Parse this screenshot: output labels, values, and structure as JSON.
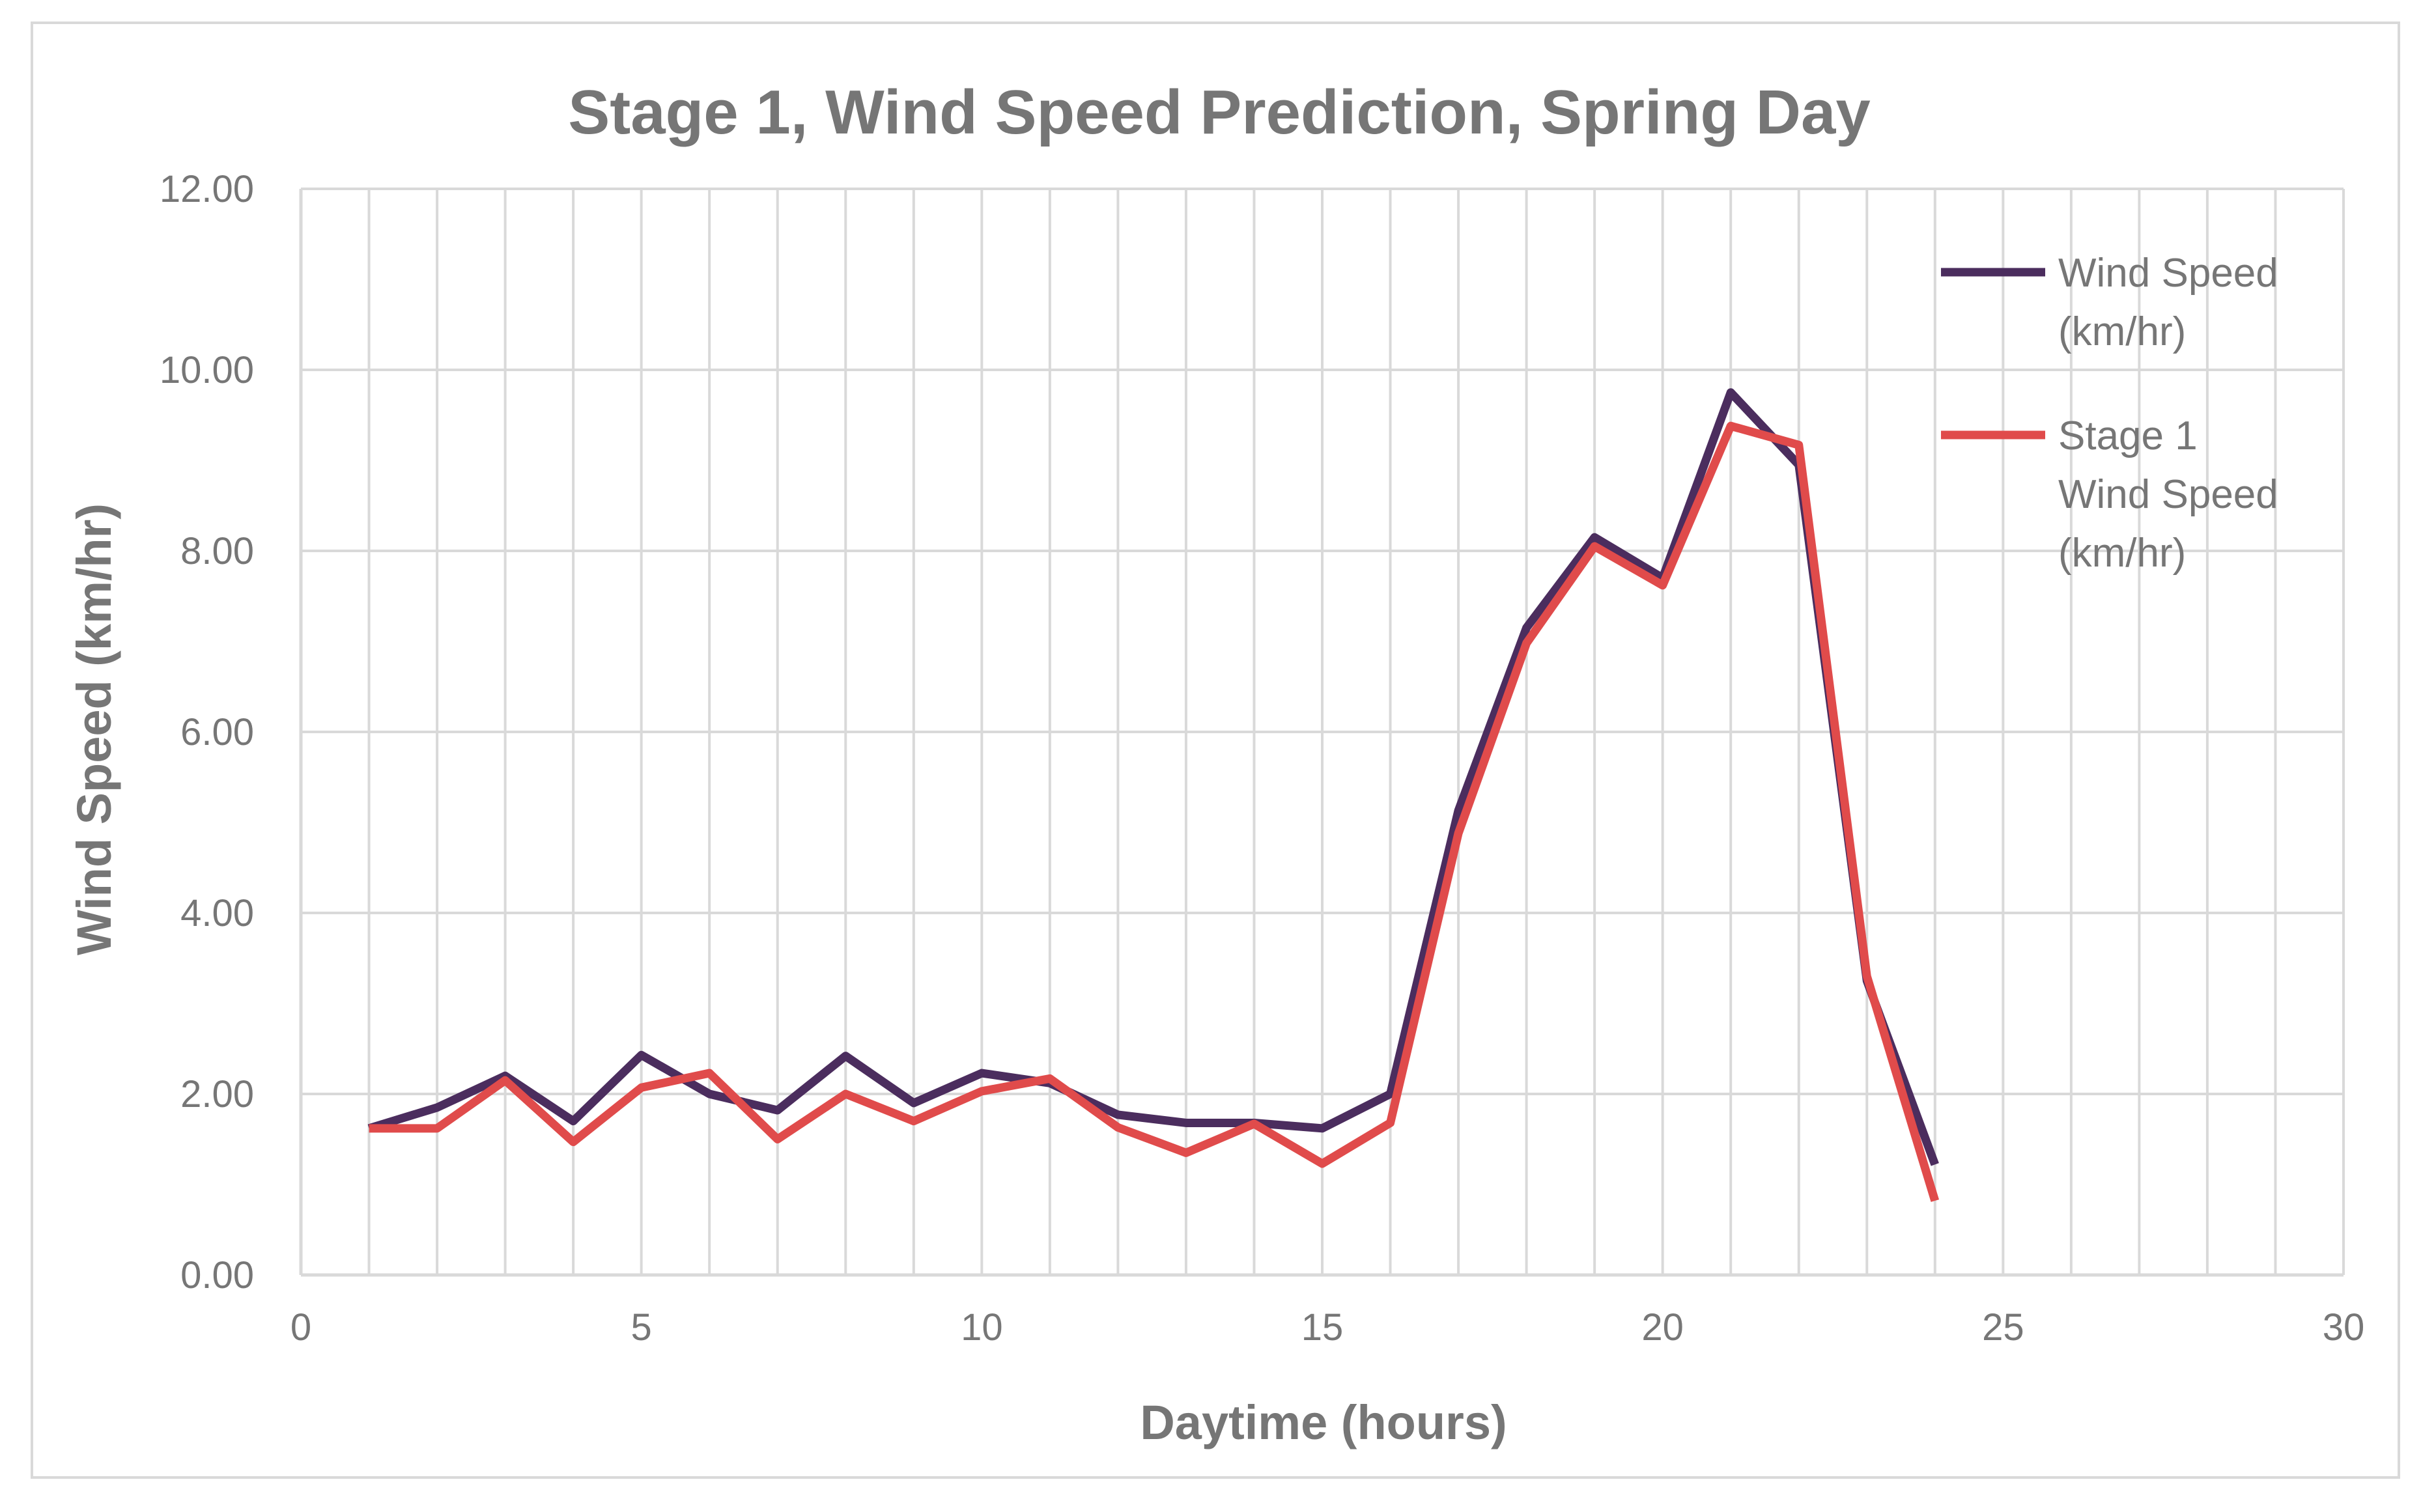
{
  "chart_data": {
    "type": "line",
    "title": "Stage 1, Wind Speed Prediction, Spring Day",
    "xlabel": "Daytime (hours)",
    "ylabel": "Wind Speed (km/hr)",
    "xlim": [
      0,
      30
    ],
    "ylim": [
      0,
      12
    ],
    "x_ticks": [
      0,
      5,
      10,
      15,
      20,
      25,
      30
    ],
    "x_tick_labels": [
      "0",
      "5",
      "10",
      "15",
      "20",
      "25",
      "30"
    ],
    "y_ticks": [
      0,
      2,
      4,
      6,
      8,
      10,
      12
    ],
    "y_tick_labels": [
      "0.00",
      "2.00",
      "4.00",
      "6.00",
      "8.00",
      "10.00",
      "12.00"
    ],
    "grid": true,
    "legend_position": "right",
    "x": [
      1,
      2,
      3,
      4,
      5,
      6,
      7,
      8,
      9,
      10,
      11,
      12,
      13,
      14,
      15,
      16,
      17,
      18,
      19,
      20,
      21,
      22,
      23,
      24
    ],
    "series": [
      {
        "name": "Wind Speed (km/hr)",
        "legend_lines": [
          "Wind Speed",
          "(km/hr)"
        ],
        "color": "#4b2d5e",
        "values": [
          1.62,
          1.85,
          2.2,
          1.7,
          2.43,
          2.0,
          1.82,
          2.42,
          1.9,
          2.23,
          2.12,
          1.77,
          1.68,
          1.68,
          1.62,
          2.0,
          5.13,
          7.15,
          8.15,
          7.7,
          9.75,
          8.95,
          3.25,
          1.22
        ]
      },
      {
        "name": "Stage 1 Wind Speed (km/hr)",
        "legend_lines": [
          "Stage 1",
          "Wind Speed",
          "(km/hr)"
        ],
        "color": "#e04b4b",
        "values": [
          1.62,
          1.62,
          2.15,
          1.47,
          2.07,
          2.23,
          1.5,
          2.0,
          1.7,
          2.03,
          2.17,
          1.63,
          1.35,
          1.67,
          1.23,
          1.68,
          4.88,
          6.98,
          8.05,
          7.62,
          9.38,
          9.17,
          3.3,
          0.82
        ]
      }
    ]
  }
}
